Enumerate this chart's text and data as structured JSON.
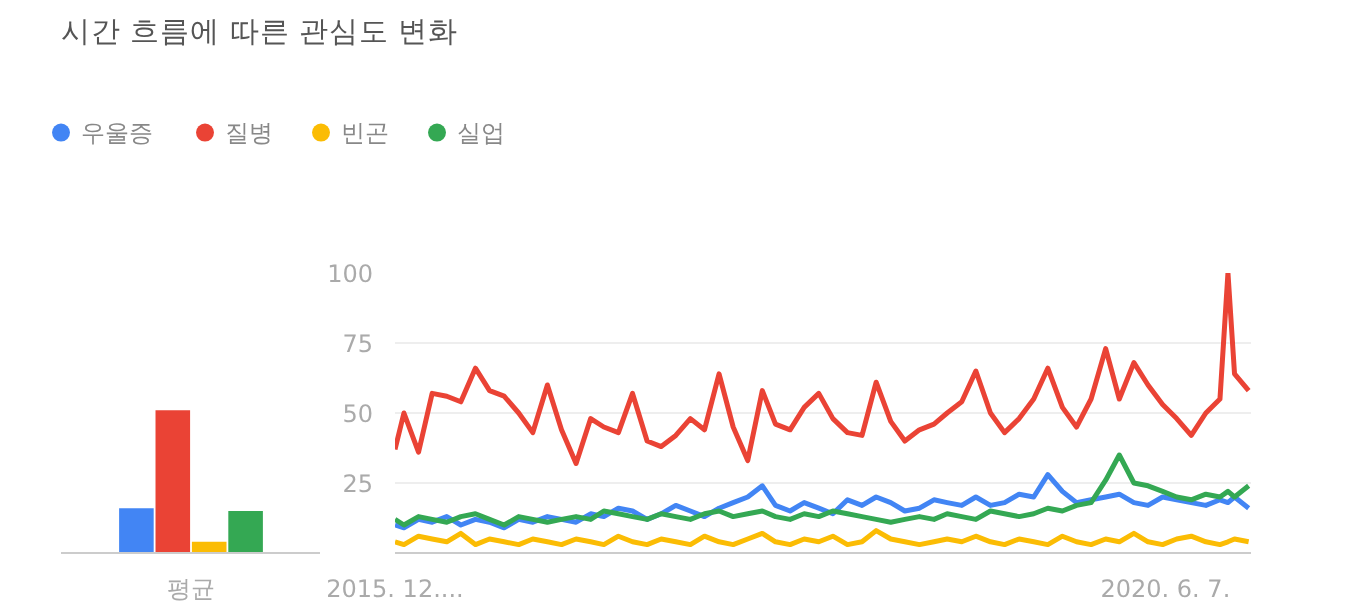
{
  "chart_data": [
    {
      "type": "bar",
      "title": "시간 흐름에 따른 관심도 변화",
      "categories": [
        "평균"
      ],
      "legend": "top",
      "ylim": [
        0,
        100
      ],
      "tick_labels": "x",
      "series": [
        {
          "name": "우울증",
          "color": "#4285f4",
          "values": [
            16
          ]
        },
        {
          "name": "질병",
          "color": "#ea4335",
          "values": [
            51
          ]
        },
        {
          "name": "빈곤",
          "color": "#fbbc04",
          "values": [
            4
          ]
        },
        {
          "name": "실업",
          "color": "#34a853",
          "values": [
            15
          ]
        }
      ]
    },
    {
      "type": "line",
      "xlim": [
        "2015-12-13",
        "2020-12-06"
      ],
      "ylim": [
        0,
        100
      ],
      "yticks": [
        {
          "value": 0,
          "label": null
        },
        25,
        50,
        75,
        100
      ],
      "grid": "y",
      "xticks": [
        {
          "value": "2015-12-13",
          "label": "2015. 12...."
        },
        {
          "value": "2020-06-07",
          "label": "2020. 6. 7."
        }
      ],
      "x": [
        "2015-12-13",
        "2016-01",
        "2016-02",
        "2016-03",
        "2016-04",
        "2016-05",
        "2016-06",
        "2016-07",
        "2016-08",
        "2016-09",
        "2016-10",
        "2016-11",
        "2016-12",
        "2017-01",
        "2017-02",
        "2017-03",
        "2017-04",
        "2017-05",
        "2017-06",
        "2017-07",
        "2017-08",
        "2017-09",
        "2017-10",
        "2017-11",
        "2017-12",
        "2018-01",
        "2018-02",
        "2018-03",
        "2018-04",
        "2018-05",
        "2018-06",
        "2018-07",
        "2018-08",
        "2018-09",
        "2018-10",
        "2018-11",
        "2018-12",
        "2019-01",
        "2019-02",
        "2019-03",
        "2019-04",
        "2019-05",
        "2019-06",
        "2019-07",
        "2019-08",
        "2019-09",
        "2019-10",
        "2019-11",
        "2019-12",
        "2020-01",
        "2020-02",
        "2020-03",
        "2020-04",
        "2020-05",
        "2020-06",
        "2020-07",
        "2020-08",
        "2020-09",
        "2020-10",
        "2020-10-18",
        "2020-11",
        "2020-12"
      ],
      "series": [
        {
          "color": "#4285f4",
          "values": [
            10,
            9,
            12,
            11,
            13,
            10,
            12,
            11,
            9,
            12,
            11,
            13,
            12,
            11,
            14,
            13,
            16,
            15,
            12,
            14,
            17,
            15,
            13,
            16,
            18,
            20,
            24,
            17,
            15,
            18,
            16,
            14,
            19,
            17,
            20,
            18,
            15,
            16,
            19,
            18,
            17,
            20,
            17,
            18,
            21,
            20,
            28,
            22,
            18,
            19,
            20,
            21,
            18,
            17,
            20,
            19,
            18,
            17,
            19,
            18,
            20,
            16
          ]
        },
        {
          "color": "#ea4335",
          "values": [
            37,
            50,
            36,
            57,
            56,
            54,
            66,
            58,
            56,
            50,
            43,
            60,
            44,
            32,
            48,
            45,
            43,
            57,
            40,
            38,
            42,
            48,
            44,
            64,
            45,
            33,
            58,
            46,
            44,
            52,
            57,
            48,
            43,
            42,
            61,
            47,
            40,
            44,
            46,
            50,
            54,
            65,
            50,
            43,
            48,
            55,
            66,
            52,
            45,
            55,
            73,
            55,
            68,
            60,
            53,
            48,
            42,
            50,
            55,
            100,
            64,
            58
          ]
        },
        {
          "color": "#fbbc04",
          "values": [
            4,
            3,
            6,
            5,
            4,
            7,
            3,
            5,
            4,
            3,
            5,
            4,
            3,
            5,
            4,
            3,
            6,
            4,
            3,
            5,
            4,
            3,
            6,
            4,
            3,
            5,
            7,
            4,
            3,
            5,
            4,
            6,
            3,
            4,
            8,
            5,
            4,
            3,
            4,
            5,
            4,
            6,
            4,
            3,
            5,
            4,
            3,
            6,
            4,
            3,
            5,
            4,
            7,
            4,
            3,
            5,
            6,
            4,
            3,
            4,
            5,
            4
          ]
        },
        {
          "color": "#34a853",
          "values": [
            12,
            10,
            13,
            12,
            11,
            13,
            14,
            12,
            10,
            13,
            12,
            11,
            12,
            13,
            12,
            15,
            14,
            13,
            12,
            14,
            13,
            12,
            14,
            15,
            13,
            14,
            15,
            13,
            12,
            14,
            13,
            15,
            14,
            13,
            12,
            11,
            12,
            13,
            12,
            14,
            13,
            12,
            15,
            14,
            13,
            14,
            16,
            15,
            17,
            18,
            26,
            35,
            25,
            24,
            22,
            20,
            19,
            21,
            20,
            22,
            20,
            24
          ]
        }
      ]
    }
  ]
}
